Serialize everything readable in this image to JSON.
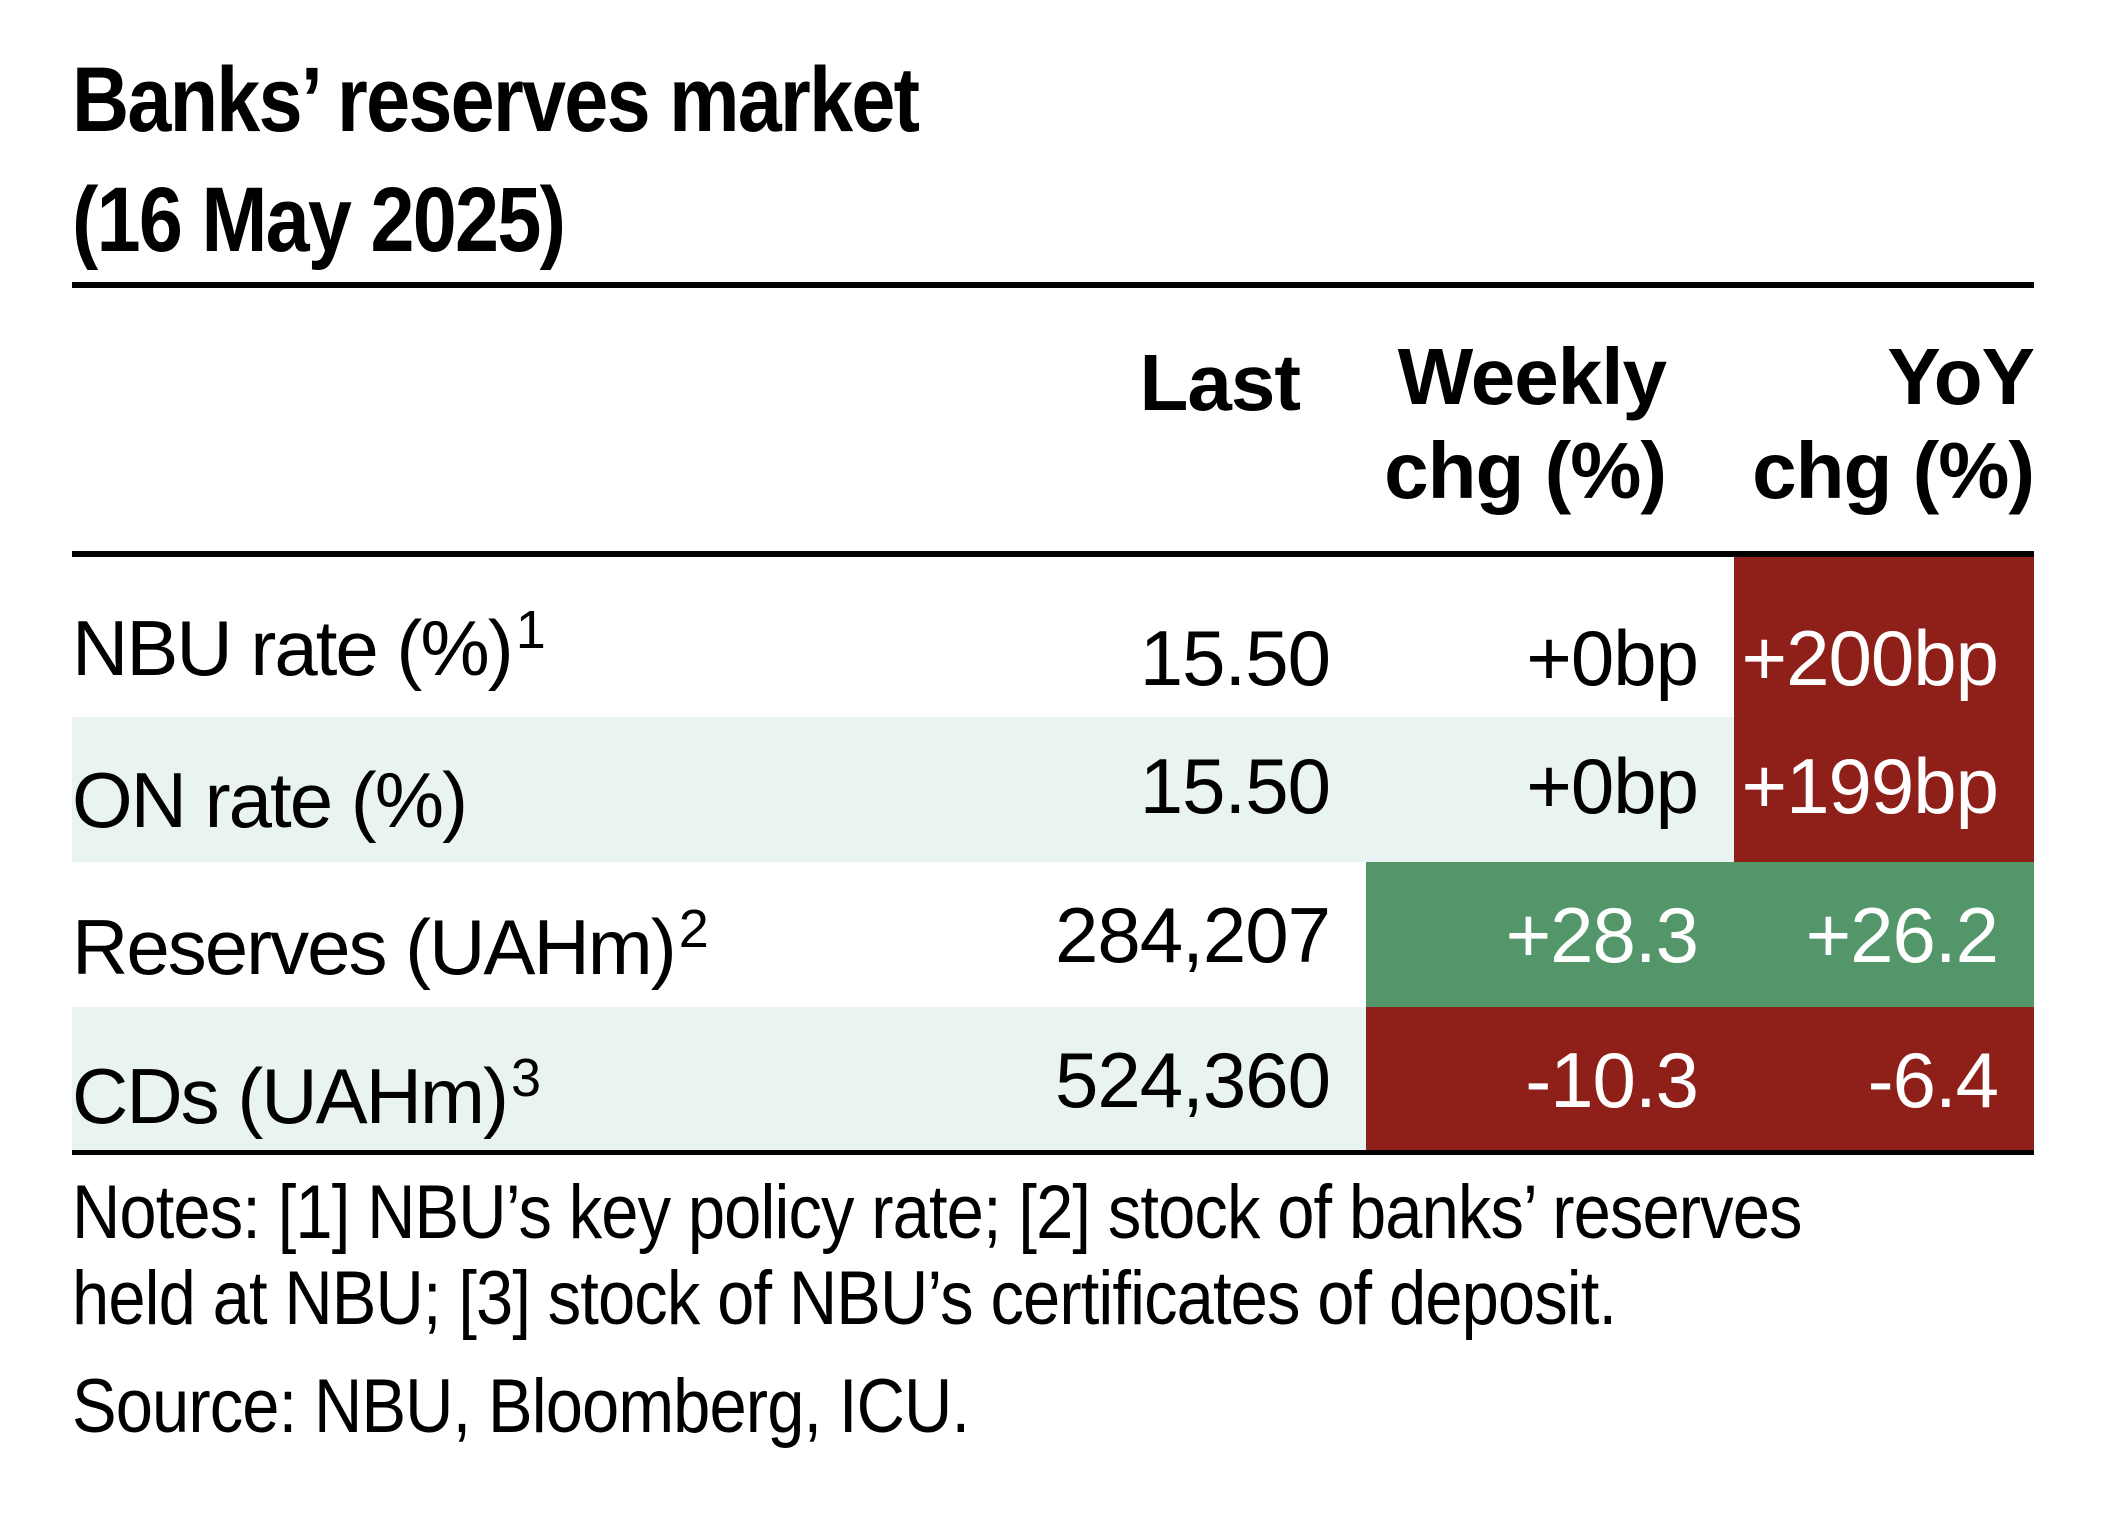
{
  "chart_data": {
    "type": "table",
    "title_line1": "Banks’ reserves market",
    "title_line2": "(16 May 2025)",
    "columns": {
      "last": "Last",
      "weekly_line1": "Weekly",
      "weekly_line2": "chg (%)",
      "yoy_line1": "YoY",
      "yoy_line2": "chg (%)"
    },
    "rows": [
      {
        "label": "NBU rate (%)",
        "note": "1",
        "last": "15.50",
        "weekly": "+0bp",
        "yoy": "+200bp"
      },
      {
        "label": "ON rate (%)",
        "note": "",
        "last": "15.50",
        "weekly": "+0bp",
        "yoy": "+199bp"
      },
      {
        "label": "Reserves (UAHm)",
        "note": "2",
        "last": "284,207",
        "weekly": "+28.3",
        "yoy": "+26.2"
      },
      {
        "label": "CDs (UAHm)",
        "note": "3",
        "last": "524,360",
        "weekly": "-10.3",
        "yoy": "-6.4"
      }
    ],
    "cell_colors": {
      "negative": "#8e2019",
      "positive": "#53966a",
      "shaded_row": "#e9f3f2"
    }
  },
  "notes_line1": "Notes: [1] NBU’s key policy rate; [2] stock of banks’ reserves",
  "notes_line2": "held at NBU; [3] stock of NBU’s certificates of deposit.",
  "source": "Source: NBU, Bloomberg, ICU."
}
